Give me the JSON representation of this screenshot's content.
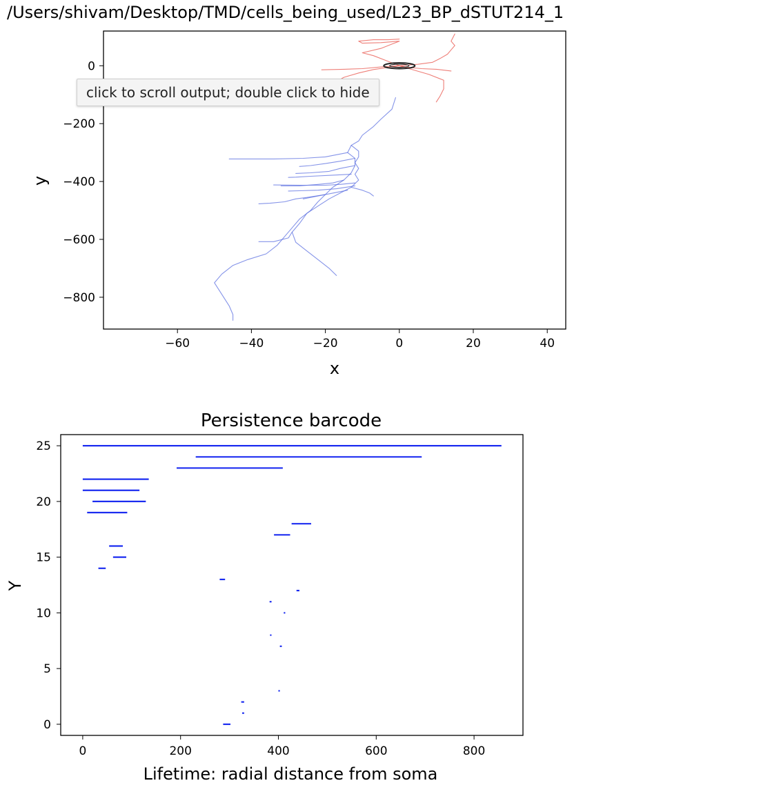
{
  "output_title": "/Users/shivam/Desktop/TMD/cells_being_used/L23_BP_dSTUT214_1",
  "tooltip": "click to scroll output; double click to hide",
  "colors": {
    "axon": "#e8534a",
    "dendrite": "#5b6fe0",
    "soma": "#222222",
    "bars": "#1b2cf0"
  },
  "chart_data": [
    {
      "type": "line",
      "title": "",
      "xlabel": "x",
      "ylabel": "y",
      "xlim": [
        -80,
        45
      ],
      "ylim": [
        -910,
        120
      ],
      "xticks": [
        -60,
        -40,
        -20,
        0,
        20,
        40
      ],
      "yticks": [
        0,
        -200,
        -400,
        -600,
        -800
      ],
      "grid": false,
      "soma": {
        "cx": 0,
        "cy": 0,
        "rx": 4.2,
        "ry": 10
      },
      "series": [
        {
          "group": "axon",
          "points": [
            [
              0,
              0
            ],
            [
              5,
              5
            ],
            [
              9,
              12
            ],
            [
              11,
              25
            ],
            [
              13,
              40
            ],
            [
              14,
              55
            ],
            [
              15,
              70
            ],
            [
              14,
              85
            ],
            [
              15,
              110
            ]
          ]
        },
        {
          "group": "axon",
          "points": [
            [
              0,
              0
            ],
            [
              -3,
              15
            ],
            [
              -7,
              35
            ],
            [
              -10,
              45
            ],
            [
              -5,
              60
            ],
            [
              -2,
              75
            ],
            [
              0,
              85
            ],
            [
              -5,
              80
            ],
            [
              -10,
              78
            ],
            [
              -11,
              85
            ],
            [
              -7,
              90
            ],
            [
              -3,
              90
            ],
            [
              0,
              92
            ]
          ]
        },
        {
          "group": "axon",
          "points": [
            [
              0,
              0
            ],
            [
              -4,
              -3
            ],
            [
              -10,
              -10
            ],
            [
              -15,
              -12
            ],
            [
              -21,
              -14
            ]
          ]
        },
        {
          "group": "axon",
          "points": [
            [
              0,
              0
            ],
            [
              -7,
              -13
            ],
            [
              -11,
              -25
            ],
            [
              -15,
              -40
            ],
            [
              -17,
              -55
            ],
            [
              -20,
              -80
            ],
            [
              -19,
              -105
            ],
            [
              -22,
              -120
            ],
            [
              -20,
              -125
            ]
          ]
        },
        {
          "group": "axon",
          "points": [
            [
              0,
              0
            ],
            [
              2,
              -5
            ],
            [
              6,
              -10
            ],
            [
              10,
              -12
            ],
            [
              14,
              -18
            ]
          ]
        },
        {
          "group": "axon",
          "points": [
            [
              0,
              0
            ],
            [
              4,
              -15
            ],
            [
              8,
              -30
            ],
            [
              12,
              -50
            ],
            [
              12,
              -80
            ],
            [
              11,
              -105
            ],
            [
              10,
              -125
            ]
          ]
        },
        {
          "group": "dendrite",
          "points": [
            [
              -1,
              -110
            ],
            [
              -2,
              -150
            ],
            [
              -5,
              -185
            ],
            [
              -7,
              -210
            ],
            [
              -10,
              -240
            ],
            [
              -11,
              -260
            ],
            [
              -13,
              -275
            ],
            [
              -14,
              -300
            ],
            [
              -12,
              -320
            ],
            [
              -12,
              -345
            ],
            [
              -13,
              -370
            ],
            [
              -15,
              -395
            ],
            [
              -18,
              -420
            ],
            [
              -20,
              -445
            ],
            [
              -22,
              -470
            ],
            [
              -24,
              -500
            ],
            [
              -27,
              -530
            ],
            [
              -29,
              -560
            ],
            [
              -31,
              -590
            ],
            [
              -33,
              -620
            ],
            [
              -36,
              -650
            ],
            [
              -41,
              -670
            ],
            [
              -45,
              -690
            ],
            [
              -48,
              -720
            ],
            [
              -50,
              -750
            ],
            [
              -48,
              -790
            ],
            [
              -46,
              -830
            ],
            [
              -45,
              -860
            ],
            [
              -45,
              -880
            ]
          ]
        },
        {
          "group": "dendrite",
          "points": [
            [
              -14,
              -300
            ],
            [
              -20,
              -315
            ],
            [
              -26,
              -320
            ],
            [
              -34,
              -322
            ],
            [
              -46,
              -322
            ]
          ]
        },
        {
          "group": "dendrite",
          "points": [
            [
              -15,
              -395
            ],
            [
              -18,
              -405
            ],
            [
              -22,
              -410
            ],
            [
              -27,
              -415
            ],
            [
              -32,
              -415
            ]
          ]
        },
        {
          "group": "dendrite",
          "points": [
            [
              -20,
              -445
            ],
            [
              -25,
              -455
            ],
            [
              -28,
              -460
            ],
            [
              -31,
              -470
            ],
            [
              -35,
              -475
            ],
            [
              -38,
              -477
            ]
          ]
        },
        {
          "group": "dendrite",
          "points": [
            [
              -12,
              -345
            ],
            [
              -16,
              -355
            ],
            [
              -19,
              -365
            ],
            [
              -24,
              -370
            ],
            [
              -28,
              -372
            ]
          ]
        },
        {
          "group": "dendrite",
          "points": [
            [
              -13,
              -275
            ],
            [
              -11,
              -295
            ],
            [
              -11,
              -315
            ],
            [
              -12,
              -335
            ],
            [
              -11,
              -355
            ],
            [
              -12,
              -375
            ],
            [
              -11,
              -395
            ],
            [
              -13,
              -420
            ],
            [
              -16,
              -440
            ],
            [
              -19,
              -460
            ],
            [
              -22,
              -485
            ],
            [
              -25,
              -510
            ],
            [
              -27,
              -545
            ],
            [
              -29,
              -575
            ],
            [
              -30,
              -595
            ],
            [
              -34,
              -608
            ],
            [
              -38,
              -608
            ]
          ]
        },
        {
          "group": "dendrite",
          "points": [
            [
              -13,
              -375
            ],
            [
              -18,
              -378
            ],
            [
              -24,
              -382
            ],
            [
              -28,
              -385
            ],
            [
              -30,
              -386
            ]
          ]
        },
        {
          "group": "dendrite",
          "points": [
            [
              -12,
              -405
            ],
            [
              -16,
              -410
            ],
            [
              -20,
              -413
            ],
            [
              -26,
              -413
            ],
            [
              -34,
              -412
            ]
          ]
        },
        {
          "group": "dendrite",
          "points": [
            [
              -12,
              -415
            ],
            [
              -17,
              -425
            ],
            [
              -22,
              -430
            ],
            [
              -27,
              -432
            ],
            [
              -30,
              -433
            ]
          ]
        },
        {
          "group": "dendrite",
          "points": [
            [
              -13,
              -420
            ],
            [
              -10,
              -430
            ],
            [
              -8,
              -440
            ],
            [
              -7,
              -450
            ]
          ]
        },
        {
          "group": "dendrite",
          "points": [
            [
              -14,
              -430
            ],
            [
              -18,
              -440
            ],
            [
              -22,
              -450
            ],
            [
              -26,
              -460
            ]
          ]
        },
        {
          "group": "dendrite",
          "points": [
            [
              -29,
              -575
            ],
            [
              -28,
              -610
            ],
            [
              -25,
              -640
            ],
            [
              -22,
              -670
            ],
            [
              -19,
              -700
            ],
            [
              -17,
              -725
            ]
          ]
        },
        {
          "group": "dendrite",
          "points": [
            [
              -12,
              -320
            ],
            [
              -16,
              -330
            ],
            [
              -20,
              -338
            ],
            [
              -24,
              -345
            ],
            [
              -27,
              -348
            ]
          ]
        }
      ]
    },
    {
      "type": "bar",
      "title": "Persistence barcode",
      "xlabel": "Lifetime: radial distance from soma",
      "ylabel": "Y",
      "xlim": [
        -45,
        900
      ],
      "ylim": [
        -1,
        26
      ],
      "xticks": [
        0,
        200,
        400,
        600,
        800
      ],
      "yticks": [
        0,
        5,
        10,
        15,
        20,
        25
      ],
      "grid": false,
      "bars": [
        {
          "y": 0,
          "start": 287,
          "end": 302
        },
        {
          "y": 1,
          "start": 326,
          "end": 330
        },
        {
          "y": 2,
          "start": 324,
          "end": 330
        },
        {
          "y": 3,
          "start": 400,
          "end": 403
        },
        {
          "y": 7,
          "start": 403,
          "end": 407
        },
        {
          "y": 8,
          "start": 383,
          "end": 385
        },
        {
          "y": 10,
          "start": 411,
          "end": 414
        },
        {
          "y": 11,
          "start": 382,
          "end": 386
        },
        {
          "y": 12,
          "start": 437,
          "end": 443
        },
        {
          "y": 13,
          "start": 280,
          "end": 291
        },
        {
          "y": 14,
          "start": 32,
          "end": 47
        },
        {
          "y": 15,
          "start": 62,
          "end": 89
        },
        {
          "y": 16,
          "start": 54,
          "end": 82
        },
        {
          "y": 17,
          "start": 391,
          "end": 424
        },
        {
          "y": 18,
          "start": 427,
          "end": 467
        },
        {
          "y": 19,
          "start": 9,
          "end": 91
        },
        {
          "y": 20,
          "start": 20,
          "end": 129
        },
        {
          "y": 21,
          "start": 0,
          "end": 116
        },
        {
          "y": 22,
          "start": 0,
          "end": 135
        },
        {
          "y": 23,
          "start": 192,
          "end": 409
        },
        {
          "y": 24,
          "start": 231,
          "end": 693
        },
        {
          "y": 25,
          "start": 0,
          "end": 856
        }
      ]
    }
  ]
}
